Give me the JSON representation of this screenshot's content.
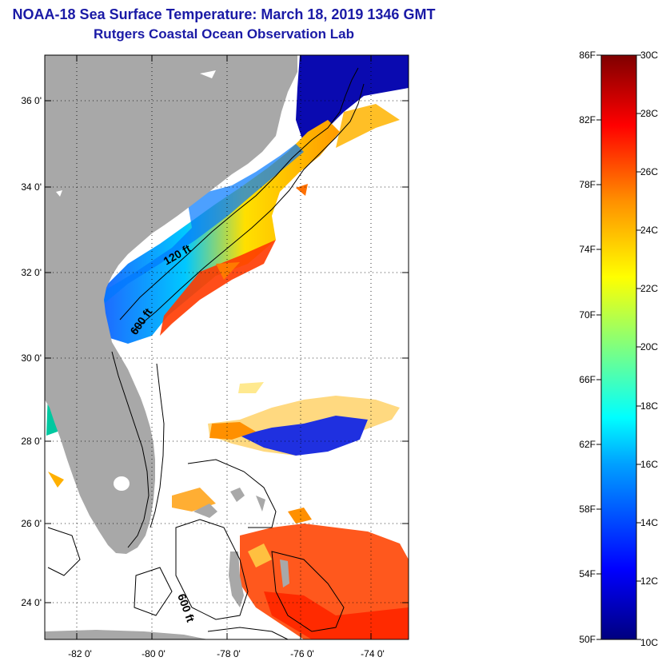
{
  "title": {
    "line1": "NOAA-18 Sea Surface Temperature:  March 18, 2019 1346 GMT",
    "line2": "Rutgers Coastal Ocean Observation Lab"
  },
  "map": {
    "lat_labels": [
      "36 0'",
      "34 0'",
      "32 0'",
      "30 0'",
      "28 0'",
      "26 0'",
      "24 0'"
    ],
    "lon_labels": [
      "-82 0'",
      "-80 0'",
      "-78 0'",
      "-76 0'",
      "-74 0'"
    ],
    "contour_labels": {
      "c120": "120 ft",
      "c600a": "600 ft",
      "c600b": "600 ft"
    }
  },
  "colorbar": {
    "fahrenheit": [
      "86F",
      "82F",
      "78F",
      "74F",
      "70F",
      "66F",
      "62F",
      "58F",
      "54F",
      "50F"
    ],
    "celsius": [
      "30C",
      "28C",
      "26C",
      "24C",
      "22C",
      "20C",
      "18C",
      "16C",
      "14C",
      "12C",
      "10C"
    ]
  },
  "colors": {
    "title": "#1a1aa6",
    "land": "#a8a8a8",
    "ocean_missing": "#ffffff"
  }
}
